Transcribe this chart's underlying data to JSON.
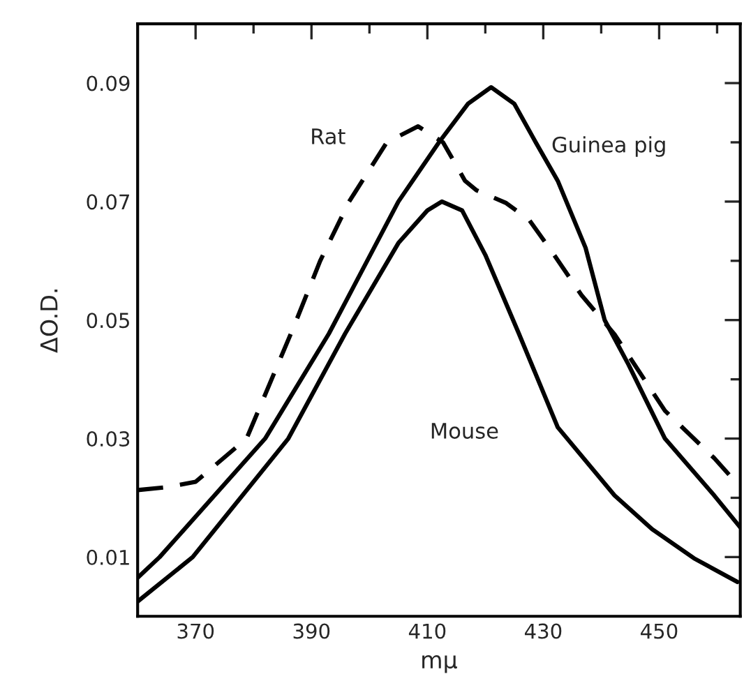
{
  "chart_data": {
    "type": "line",
    "xlabel": "mμ",
    "ylabel": "ΔO.D.",
    "xlim": [
      360,
      464
    ],
    "ylim": [
      0,
      0.1
    ],
    "xticks": [
      370,
      {
        "value": 380,
        "label": null
      },
      390,
      {
        "value": 400,
        "label": null
      },
      410,
      {
        "value": 420,
        "label": null
      },
      430,
      {
        "value": 440,
        "label": null
      },
      450,
      {
        "value": 460,
        "label": null
      }
    ],
    "yticks": [
      0.01,
      {
        "value": 0.02,
        "label": null
      },
      0.03,
      {
        "value": 0.04,
        "label": null
      },
      0.05,
      {
        "value": 0.06,
        "label": null
      },
      0.07,
      {
        "value": 0.08,
        "label": null
      },
      0.09
    ],
    "grid": false,
    "legend": false,
    "marker": "none",
    "series": [
      {
        "name": "Rat",
        "color": "#000000",
        "line_style": "dashed",
        "x": [
          360,
          365,
          370,
          378.8,
          387,
          391.5,
          396.5,
          403,
          408.4,
          412.7,
          416.5,
          418.5,
          423.5,
          427.5,
          431.6,
          436.6,
          442.3,
          451,
          459.5,
          464
        ],
        "values": [
          0.0213,
          0.0218,
          0.0227,
          0.03,
          0.049,
          0.06,
          0.07,
          0.08,
          0.0827,
          0.08,
          0.0735,
          0.0719,
          0.0698,
          0.067,
          0.0614,
          0.0542,
          0.0476,
          0.0347,
          0.0267,
          0.0218
        ]
      },
      {
        "name": "Guinea pig",
        "color": "#000000",
        "line_style": "solid",
        "x": [
          360,
          363.8,
          382,
          393,
          405,
          412,
          417,
          421,
          425,
          428.7,
          432.5,
          437.3,
          440.6,
          444.7,
          451,
          459.5,
          464
        ],
        "values": [
          0.0065,
          0.01,
          0.03,
          0.0477,
          0.07,
          0.08,
          0.0865,
          0.0893,
          0.0865,
          0.08,
          0.0735,
          0.0622,
          0.05,
          0.0425,
          0.03,
          0.0204,
          0.015
        ]
      },
      {
        "name": "Mouse",
        "color": "#000000",
        "line_style": "solid",
        "x": [
          360,
          369.5,
          386,
          395.8,
          405,
          410,
          412.5,
          416,
          420,
          425.8,
          432.5,
          442.3,
          448.8,
          456,
          463.5
        ],
        "values": [
          0.0025,
          0.01,
          0.03,
          0.0477,
          0.063,
          0.0685,
          0.07,
          0.0685,
          0.061,
          0.0477,
          0.0319,
          0.0204,
          0.0147,
          0.0098,
          0.0058
        ]
      }
    ]
  }
}
